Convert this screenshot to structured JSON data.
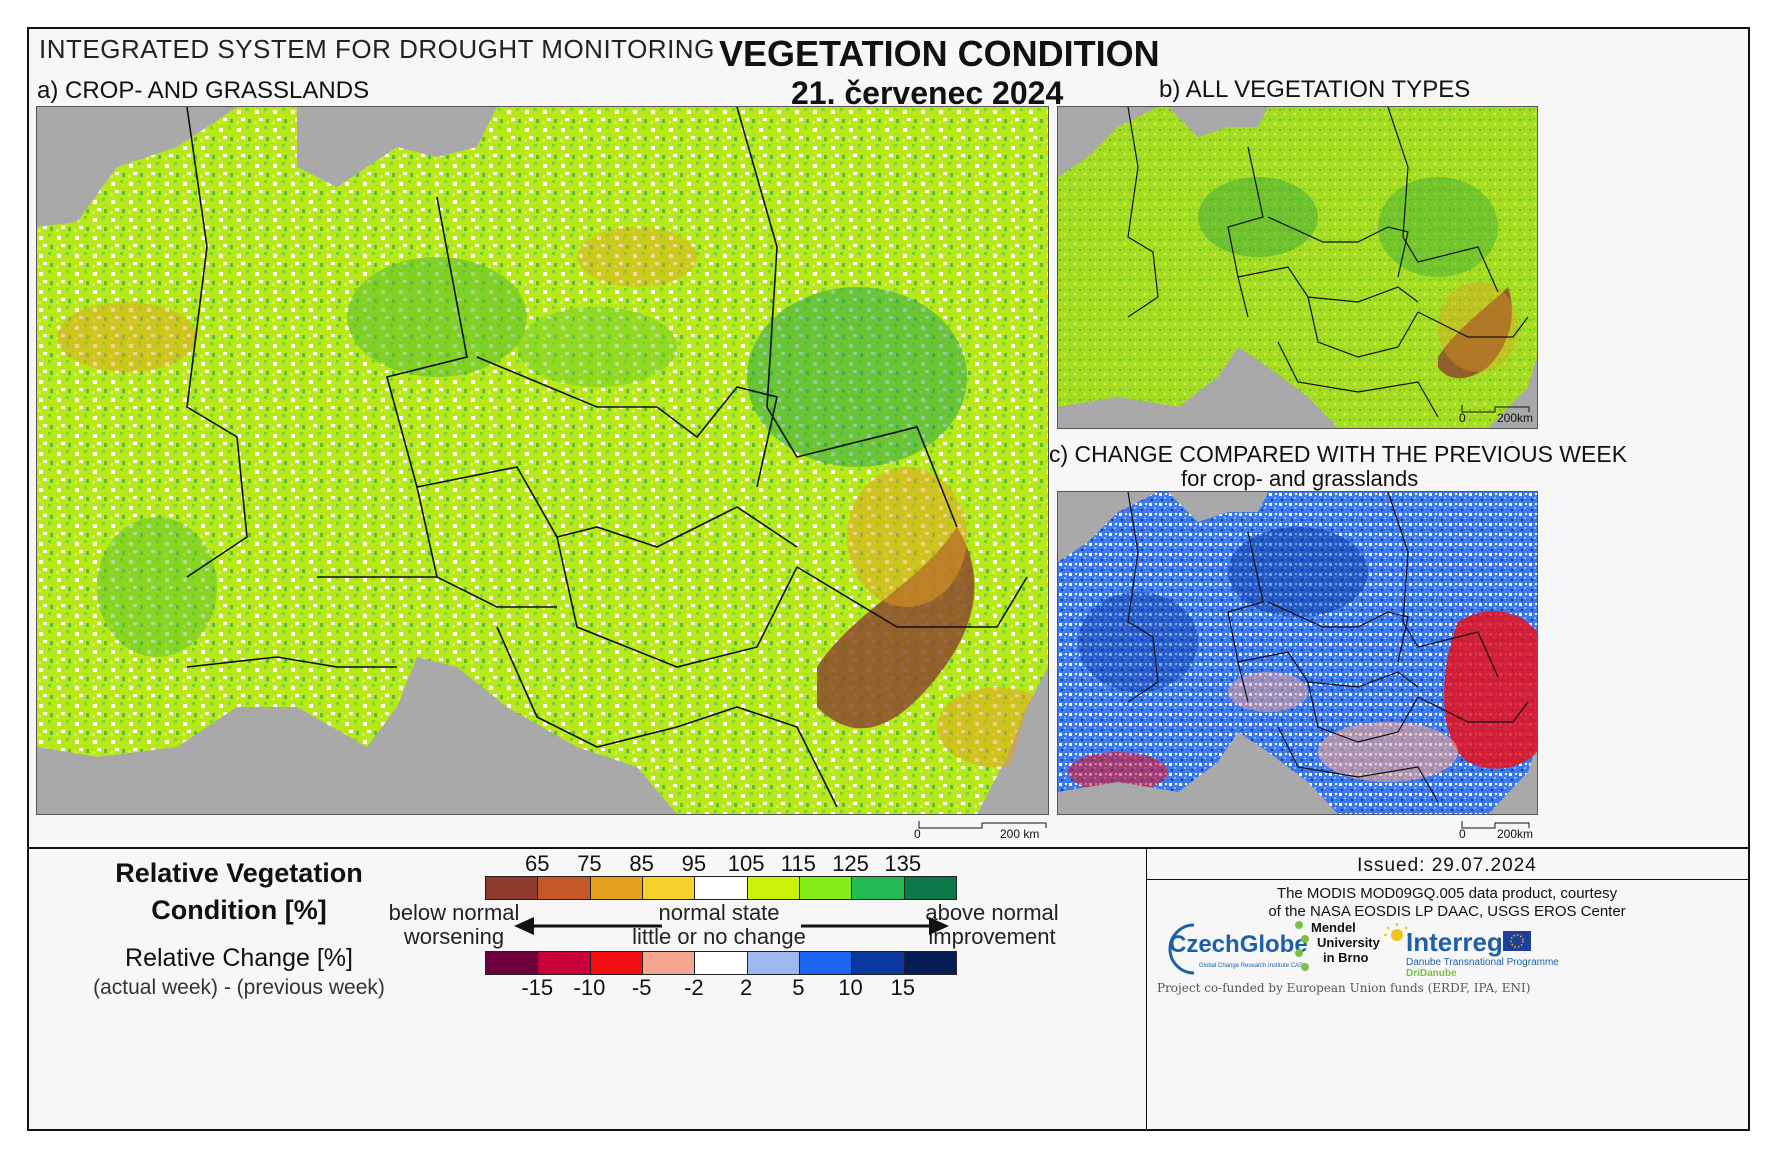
{
  "header": {
    "system": "INTEGRATED SYSTEM FOR DROUGHT MONITORING",
    "title": "VEGETATION CONDITION",
    "date": "21. červenec 2024"
  },
  "panels": {
    "a": {
      "label": "a) CROP- AND GRASSLANDS",
      "scale_zero": "0",
      "scale_max": "200 km"
    },
    "b": {
      "label": "b) ALL VEGETATION TYPES",
      "scale_zero": "0",
      "scale_max": "200km"
    },
    "c": {
      "label": "c) CHANGE COMPARED WITH THE PREVIOUS WEEK",
      "sublabel": "for crop- and grasslands",
      "scale_zero": "0",
      "scale_max": "200km"
    }
  },
  "legend": {
    "rvc_title_line1": "Relative Vegetation",
    "rvc_title_line2": "Condition [%]",
    "rc_title": "Relative Change [%]",
    "rc_formula": "(actual week) - (previous week)",
    "condition_ticks": [
      "65",
      "75",
      "85",
      "95",
      "105",
      "115",
      "125",
      "135"
    ],
    "condition_colors": [
      "#8b3a2b",
      "#c4582a",
      "#e4a020",
      "#f5d12a",
      "#ffffff",
      "#ccf20a",
      "#84ec18",
      "#22bb55",
      "#0b7a48"
    ],
    "change_ticks": [
      "-15",
      "-10",
      "-5",
      "-2",
      "2",
      "5",
      "10",
      "15"
    ],
    "change_colors": [
      "#6e0040",
      "#c8003a",
      "#f20d12",
      "#f4a690",
      "#ffffff",
      "#9db8ee",
      "#1a66f0",
      "#0a3aa0",
      "#061c55"
    ],
    "left_desc_line1": "below normal",
    "left_desc_line2": "worsening",
    "mid_desc_line1": "normal state",
    "mid_desc_line2": "little or no change",
    "right_desc_line1": "above normal",
    "right_desc_line2": "improvement"
  },
  "footer": {
    "issued": "Issued: 29.07.2024",
    "credit_line1": "The MODIS MOD09GQ.005 data product, courtesy",
    "credit_line2": "of the NASA EOSDIS LP DAAC, USGS EROS Center",
    "czechglobe": "CzechGlobe",
    "czechglobe_sub": "Global Change Research Institute CAS",
    "mendel_line1": "Mendel",
    "mendel_line2": "University",
    "mendel_line3": "in Brno",
    "interreg": "Interreg",
    "interreg_sub1": "Danube Transnational Programme",
    "interreg_sub2": "DriDanube",
    "funding": "Project co-funded by European Union funds (ERDF, IPA, ENI)"
  }
}
